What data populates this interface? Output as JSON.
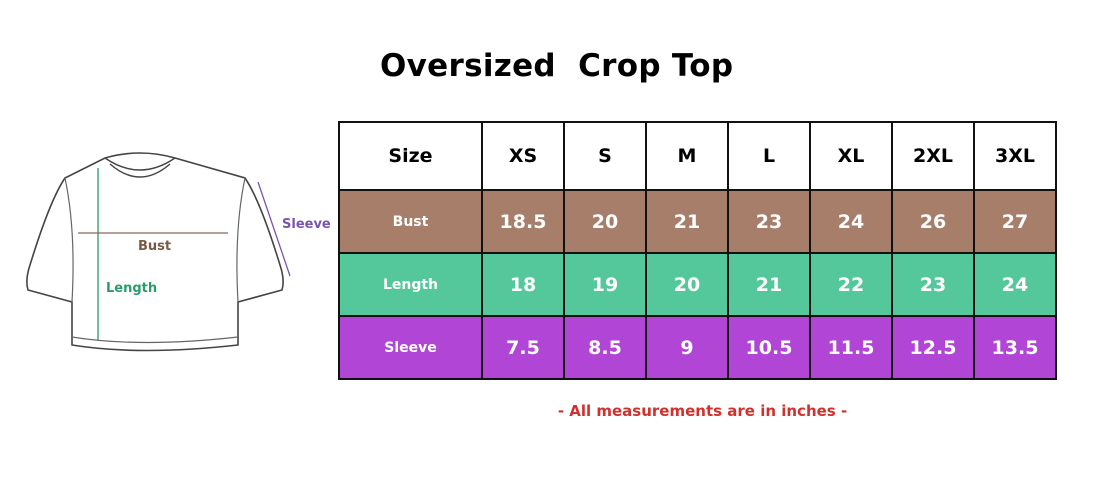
{
  "title": "Oversized  Crop Top",
  "diagram": {
    "bust": "Bust",
    "length": "Length",
    "sleeve": "Sleeve"
  },
  "table": {
    "header": [
      "Size",
      "XS",
      "S",
      "M",
      "L",
      "XL",
      "2XL",
      "3XL"
    ],
    "rows": [
      [
        "Bust",
        "18.5",
        "20",
        "21",
        "23",
        "24",
        "26",
        "27"
      ],
      [
        "Length",
        "18",
        "19",
        "20",
        "21",
        "22",
        "23",
        "24"
      ],
      [
        "Sleeve",
        "7.5",
        "8.5",
        "9",
        "10.5",
        "11.5",
        "12.5",
        "13.5"
      ]
    ],
    "row_colors": [
      "#a67e6a",
      "#55c89b",
      "#b045d6"
    ]
  },
  "note": "- All measurements are in inches -"
}
